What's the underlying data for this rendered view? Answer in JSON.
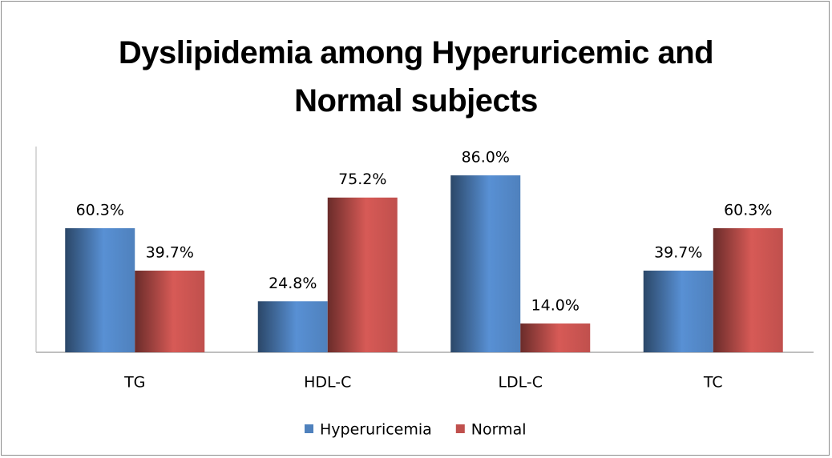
{
  "chart_data": {
    "type": "bar",
    "title": "Dyslipidemia among Hyperuricemic and Normal subjects",
    "categories": [
      "TG",
      "HDL-C",
      "LDL-C",
      "TC"
    ],
    "series": [
      {
        "name": "Hyperuricemia",
        "color": "#4f81bd",
        "values": [
          60.3,
          24.8,
          86.0,
          39.7
        ],
        "value_labels": [
          "60.3%",
          "24.8%",
          "86.0%",
          "39.7%"
        ]
      },
      {
        "name": "Normal",
        "color": "#c0504d",
        "values": [
          39.7,
          75.2,
          14.0,
          60.3
        ],
        "value_labels": [
          "39.7%",
          "75.2%",
          "14.0%",
          "60.3%"
        ]
      }
    ],
    "ylim": [
      0,
      100
    ],
    "legend": "bottom"
  }
}
